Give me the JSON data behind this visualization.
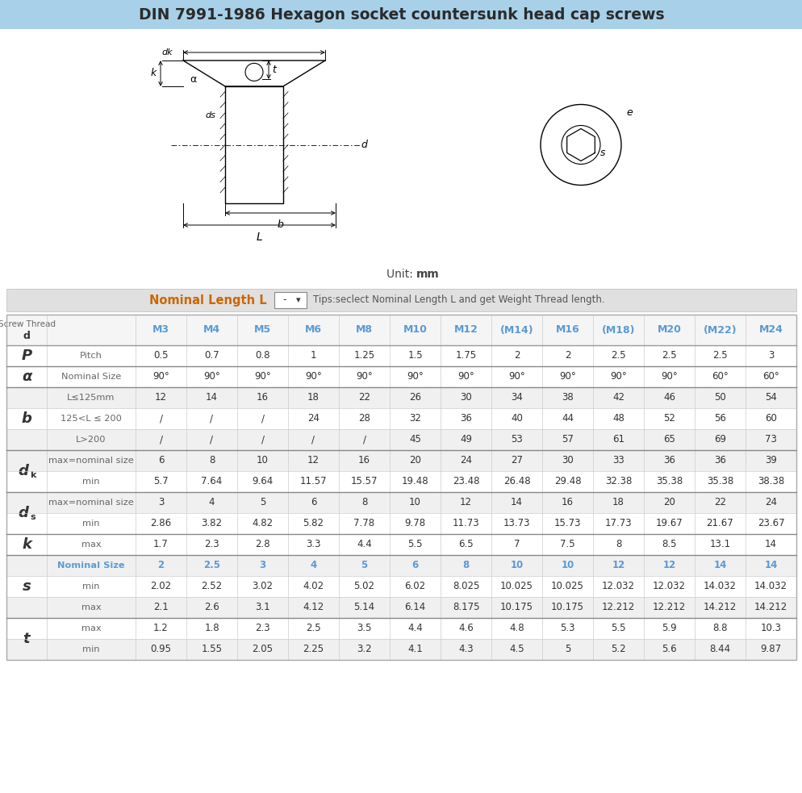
{
  "title": "DIN 7991-1986 Hexagon socket countersunk head cap screws",
  "title_bg": "#a8d0e8",
  "tips_text": "Tips:seclect Nominal Length L and get Weight Thread length.",
  "col_headers": [
    "Screw Thread\nd",
    "M3",
    "M4",
    "M5",
    "M6",
    "M8",
    "M10",
    "M12",
    "(M14)",
    "M16",
    "(M18)",
    "M20",
    "(M22)",
    "M24"
  ],
  "col_header_color": "#5b9bd5",
  "rows": [
    {
      "param": "P",
      "span": 1,
      "label": "Pitch",
      "values": [
        "0.5",
        "0.7",
        "0.8",
        "1",
        "1.25",
        "1.5",
        "1.75",
        "2",
        "2",
        "2.5",
        "2.5",
        "2.5",
        "3"
      ],
      "lc": "#666666",
      "vc": "#333333"
    },
    {
      "param": "a",
      "span": 1,
      "label": "Nominal Size",
      "values": [
        "90°",
        "90°",
        "90°",
        "90°",
        "90°",
        "90°",
        "90°",
        "90°",
        "90°",
        "90°",
        "90°",
        "60°",
        "60°"
      ],
      "lc": "#666666",
      "vc": "#333333"
    },
    {
      "param": "b",
      "span": 3,
      "label": "L≤125mm",
      "values": [
        "12",
        "14",
        "16",
        "18",
        "22",
        "26",
        "30",
        "34",
        "38",
        "42",
        "46",
        "50",
        "54"
      ],
      "lc": "#666666",
      "vc": "#333333"
    },
    {
      "param": "",
      "span": 0,
      "label": "125<L ≤ 200",
      "values": [
        "/",
        "/",
        "/",
        "24",
        "28",
        "32",
        "36",
        "40",
        "44",
        "48",
        "52",
        "56",
        "60"
      ],
      "lc": "#666666",
      "vc": "#333333"
    },
    {
      "param": "",
      "span": 0,
      "label": "L>200",
      "values": [
        "/",
        "/",
        "/",
        "/",
        "/",
        "45",
        "49",
        "53",
        "57",
        "61",
        "65",
        "69",
        "73"
      ],
      "lc": "#666666",
      "vc": "#333333"
    },
    {
      "param": "dk",
      "span": 2,
      "label": "max=nominal size",
      "values": [
        "6",
        "8",
        "10",
        "12",
        "16",
        "20",
        "24",
        "27",
        "30",
        "33",
        "36",
        "36",
        "39"
      ],
      "lc": "#666666",
      "vc": "#333333"
    },
    {
      "param": "",
      "span": 0,
      "label": "min",
      "values": [
        "5.7",
        "7.64",
        "9.64",
        "11.57",
        "15.57",
        "19.48",
        "23.48",
        "26.48",
        "29.48",
        "32.38",
        "35.38",
        "35.38",
        "38.38"
      ],
      "lc": "#666666",
      "vc": "#333333"
    },
    {
      "param": "ds",
      "span": 2,
      "label": "max=nominal size",
      "values": [
        "3",
        "4",
        "5",
        "6",
        "8",
        "10",
        "12",
        "14",
        "16",
        "18",
        "20",
        "22",
        "24"
      ],
      "lc": "#666666",
      "vc": "#333333"
    },
    {
      "param": "",
      "span": 0,
      "label": "min",
      "values": [
        "2.86",
        "3.82",
        "4.82",
        "5.82",
        "7.78",
        "9.78",
        "11.73",
        "13.73",
        "15.73",
        "17.73",
        "19.67",
        "21.67",
        "23.67"
      ],
      "lc": "#666666",
      "vc": "#333333"
    },
    {
      "param": "k",
      "span": 1,
      "label": "max",
      "values": [
        "1.7",
        "2.3",
        "2.8",
        "3.3",
        "4.4",
        "5.5",
        "6.5",
        "7",
        "7.5",
        "8",
        "8.5",
        "13.1",
        "14"
      ],
      "lc": "#666666",
      "vc": "#333333"
    },
    {
      "param": "s",
      "span": 3,
      "label": "Nominal Size",
      "values": [
        "2",
        "2.5",
        "3",
        "4",
        "5",
        "6",
        "8",
        "10",
        "10",
        "12",
        "12",
        "14",
        "14"
      ],
      "lc": "#5b9bd5",
      "vc": "#5b9bd5"
    },
    {
      "param": "",
      "span": 0,
      "label": "min",
      "values": [
        "2.02",
        "2.52",
        "3.02",
        "4.02",
        "5.02",
        "6.02",
        "8.025",
        "10.025",
        "10.025",
        "12.032",
        "12.032",
        "14.032",
        "14.032"
      ],
      "lc": "#666666",
      "vc": "#333333"
    },
    {
      "param": "",
      "span": 0,
      "label": "max",
      "values": [
        "2.1",
        "2.6",
        "3.1",
        "4.12",
        "5.14",
        "6.14",
        "8.175",
        "10.175",
        "10.175",
        "12.212",
        "12.212",
        "14.212",
        "14.212"
      ],
      "lc": "#666666",
      "vc": "#333333"
    },
    {
      "param": "t",
      "span": 2,
      "label": "max",
      "values": [
        "1.2",
        "1.8",
        "2.3",
        "2.5",
        "3.5",
        "4.4",
        "4.6",
        "4.8",
        "5.3",
        "5.5",
        "5.9",
        "8.8",
        "10.3"
      ],
      "lc": "#666666",
      "vc": "#333333"
    },
    {
      "param": "",
      "span": 0,
      "label": "min",
      "values": [
        "0.95",
        "1.55",
        "2.05",
        "2.25",
        "3.2",
        "4.1",
        "4.3",
        "4.5",
        "5",
        "5.2",
        "5.6",
        "8.44",
        "9.87"
      ],
      "lc": "#666666",
      "vc": "#333333"
    }
  ],
  "row_bg": [
    "#ffffff",
    "#ffffff",
    "#f0f0f0",
    "#ffffff",
    "#f0f0f0",
    "#f0f0f0",
    "#ffffff",
    "#f0f0f0",
    "#ffffff",
    "#ffffff",
    "#f0f0f0",
    "#ffffff",
    "#f0f0f0",
    "#ffffff",
    "#f0f0f0"
  ],
  "param_groups": [
    {
      "param": "P",
      "r0": 0,
      "r1": 0
    },
    {
      "param": "a",
      "r0": 1,
      "r1": 1
    },
    {
      "param": "b",
      "r0": 2,
      "r1": 4
    },
    {
      "param": "dk",
      "r0": 5,
      "r1": 6
    },
    {
      "param": "ds",
      "r0": 7,
      "r1": 8
    },
    {
      "param": "k",
      "r0": 9,
      "r1": 9
    },
    {
      "param": "s",
      "r0": 10,
      "r1": 12
    },
    {
      "param": "t",
      "r0": 13,
      "r1": 14
    }
  ]
}
